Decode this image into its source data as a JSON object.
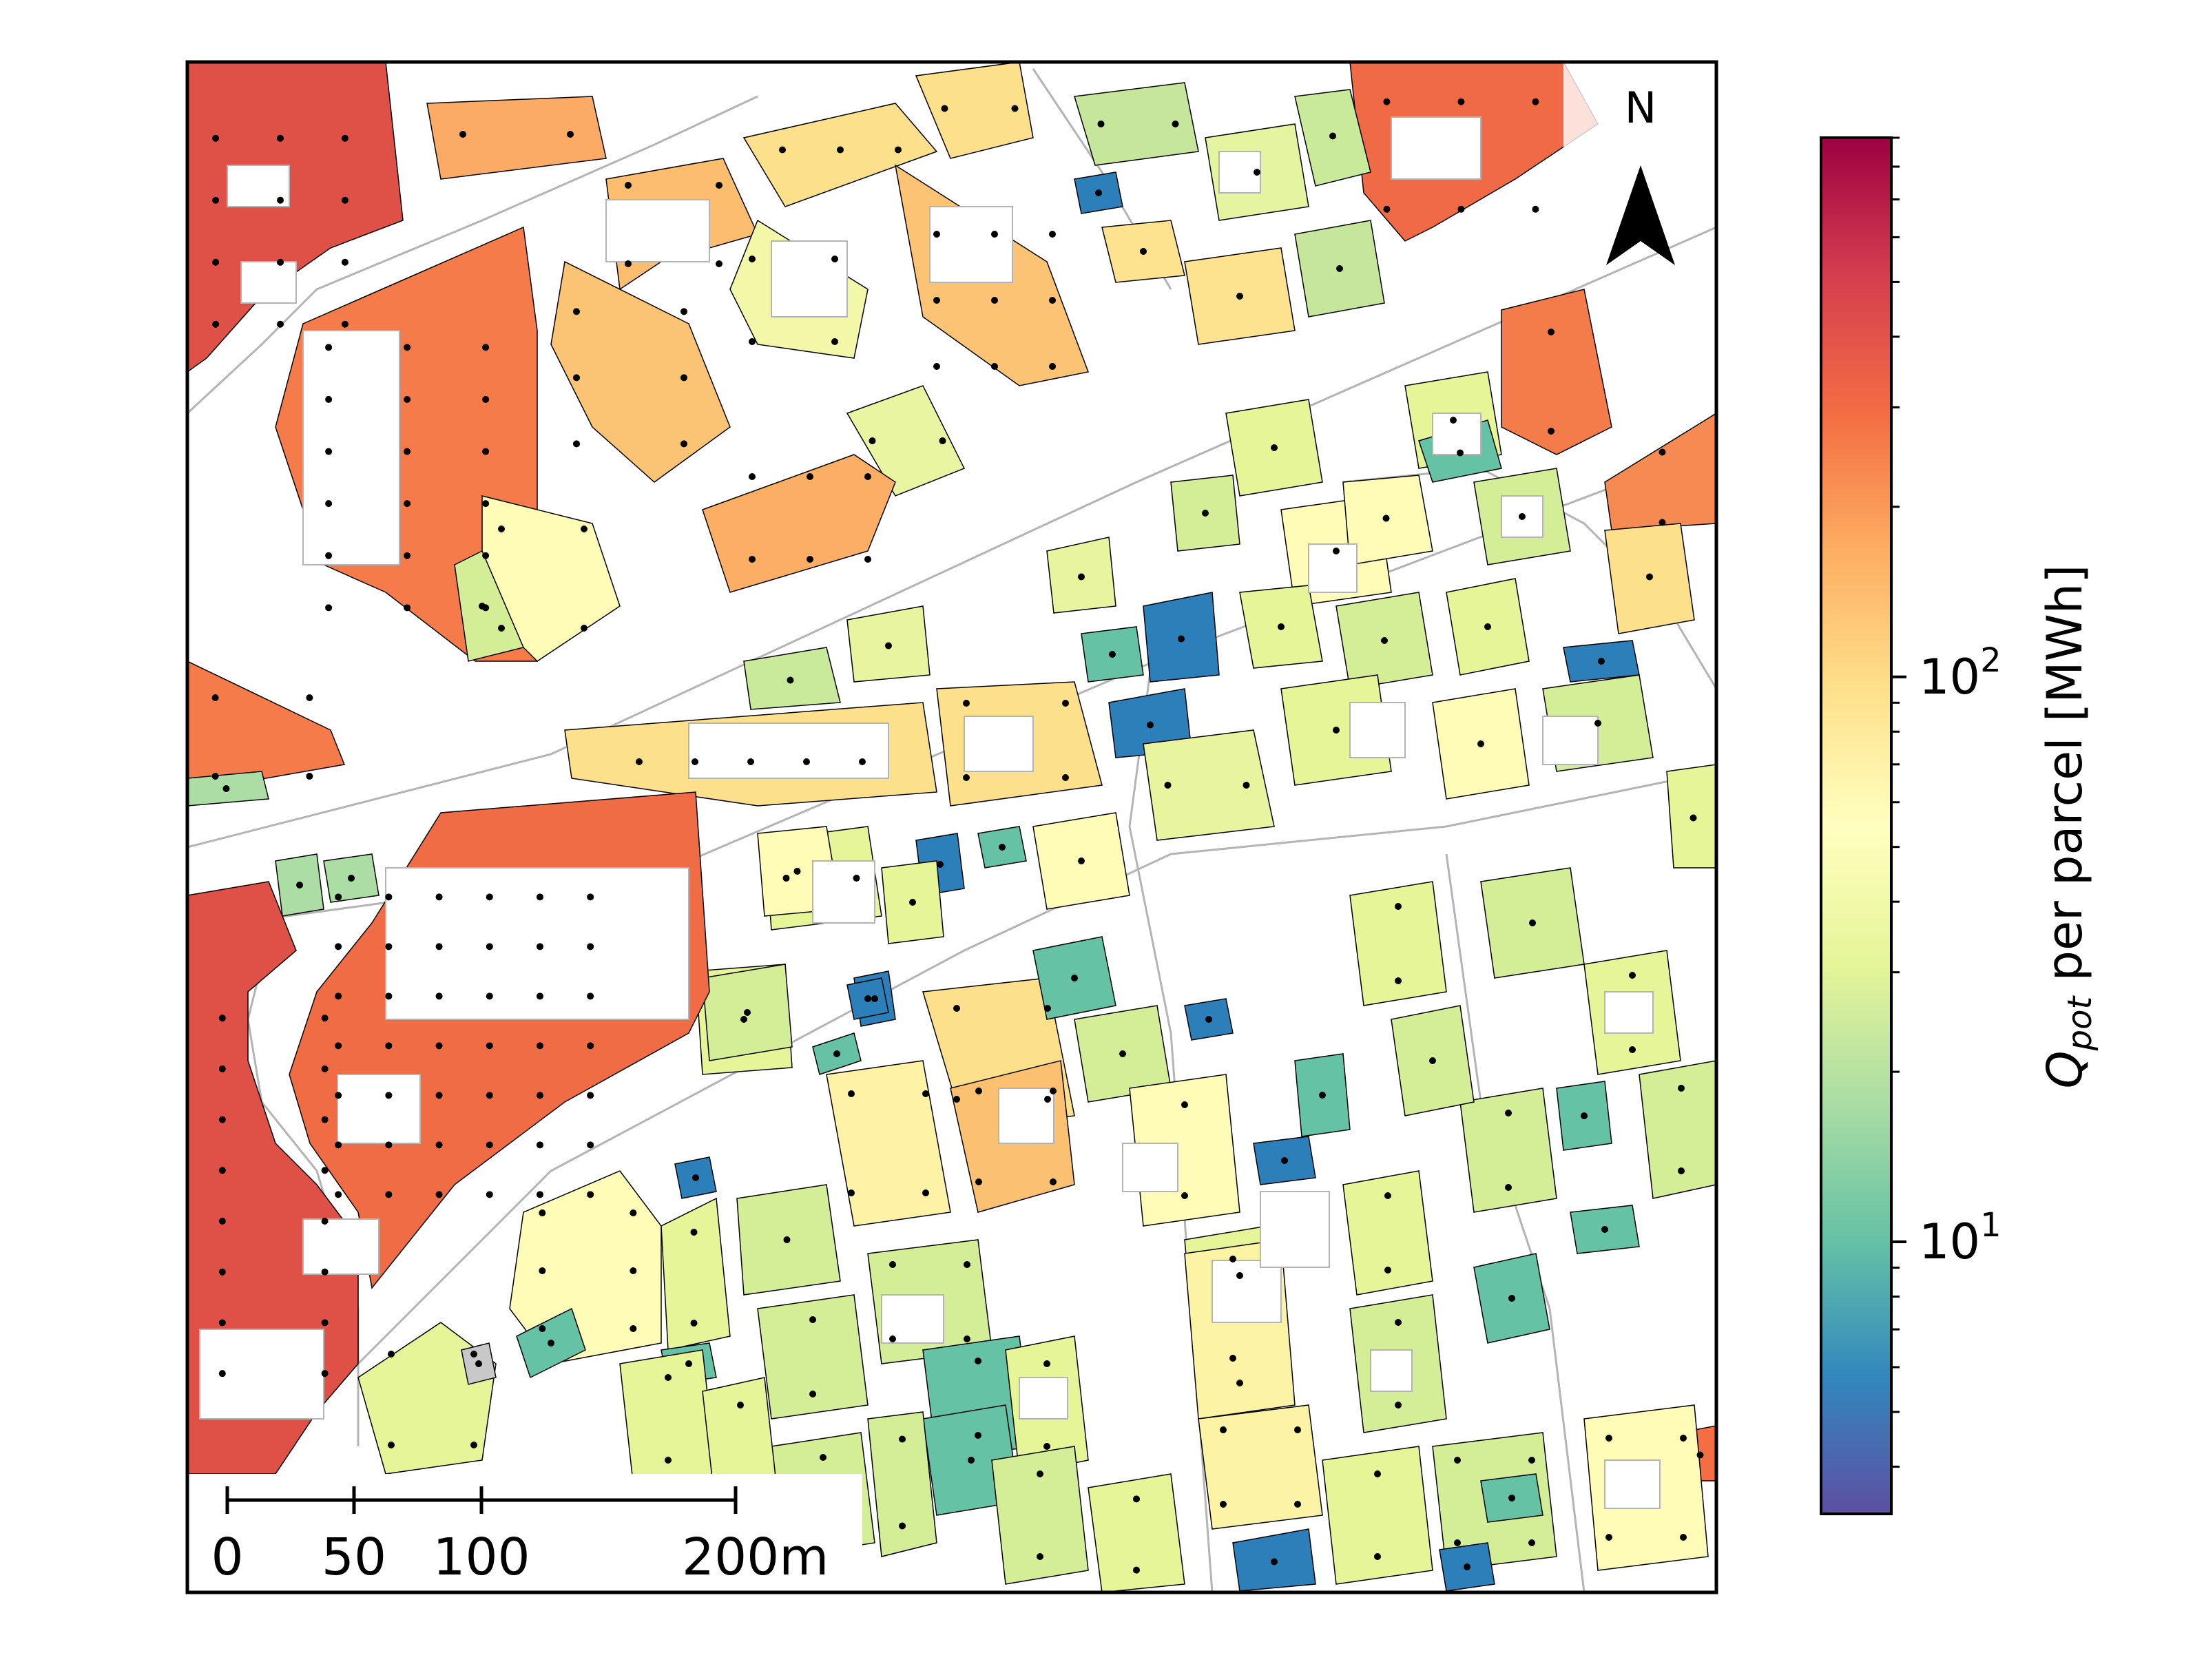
{
  "map": {
    "north_label": "N",
    "scalebar": {
      "ticks": [
        "0",
        "50",
        "100",
        "200m"
      ],
      "tick_values_m": [
        0,
        50,
        100,
        200
      ]
    }
  },
  "colorbar": {
    "label_var": "Q",
    "label_sub": "pot",
    "label_rest": " per parcel [MWh]",
    "scale": "log",
    "range": [
      3.3,
      900
    ],
    "major_ticks": [
      {
        "value": 10,
        "base": "10",
        "exp": "1"
      },
      {
        "value": 100,
        "base": "10",
        "exp": "2"
      }
    ],
    "colormap": "Spectral_r",
    "colormap_stops": [
      "#5e4fa2",
      "#3288bd",
      "#66c2a5",
      "#abdda4",
      "#e6f598",
      "#ffffbf",
      "#fee08b",
      "#fdae61",
      "#f46d43",
      "#d53e4f",
      "#9e0142"
    ]
  },
  "colors": {
    "road_edge": "#b4b4b4",
    "parcel_edge": "#000000",
    "no_data": "#c8c8c8",
    "building": "#ffffff"
  }
}
